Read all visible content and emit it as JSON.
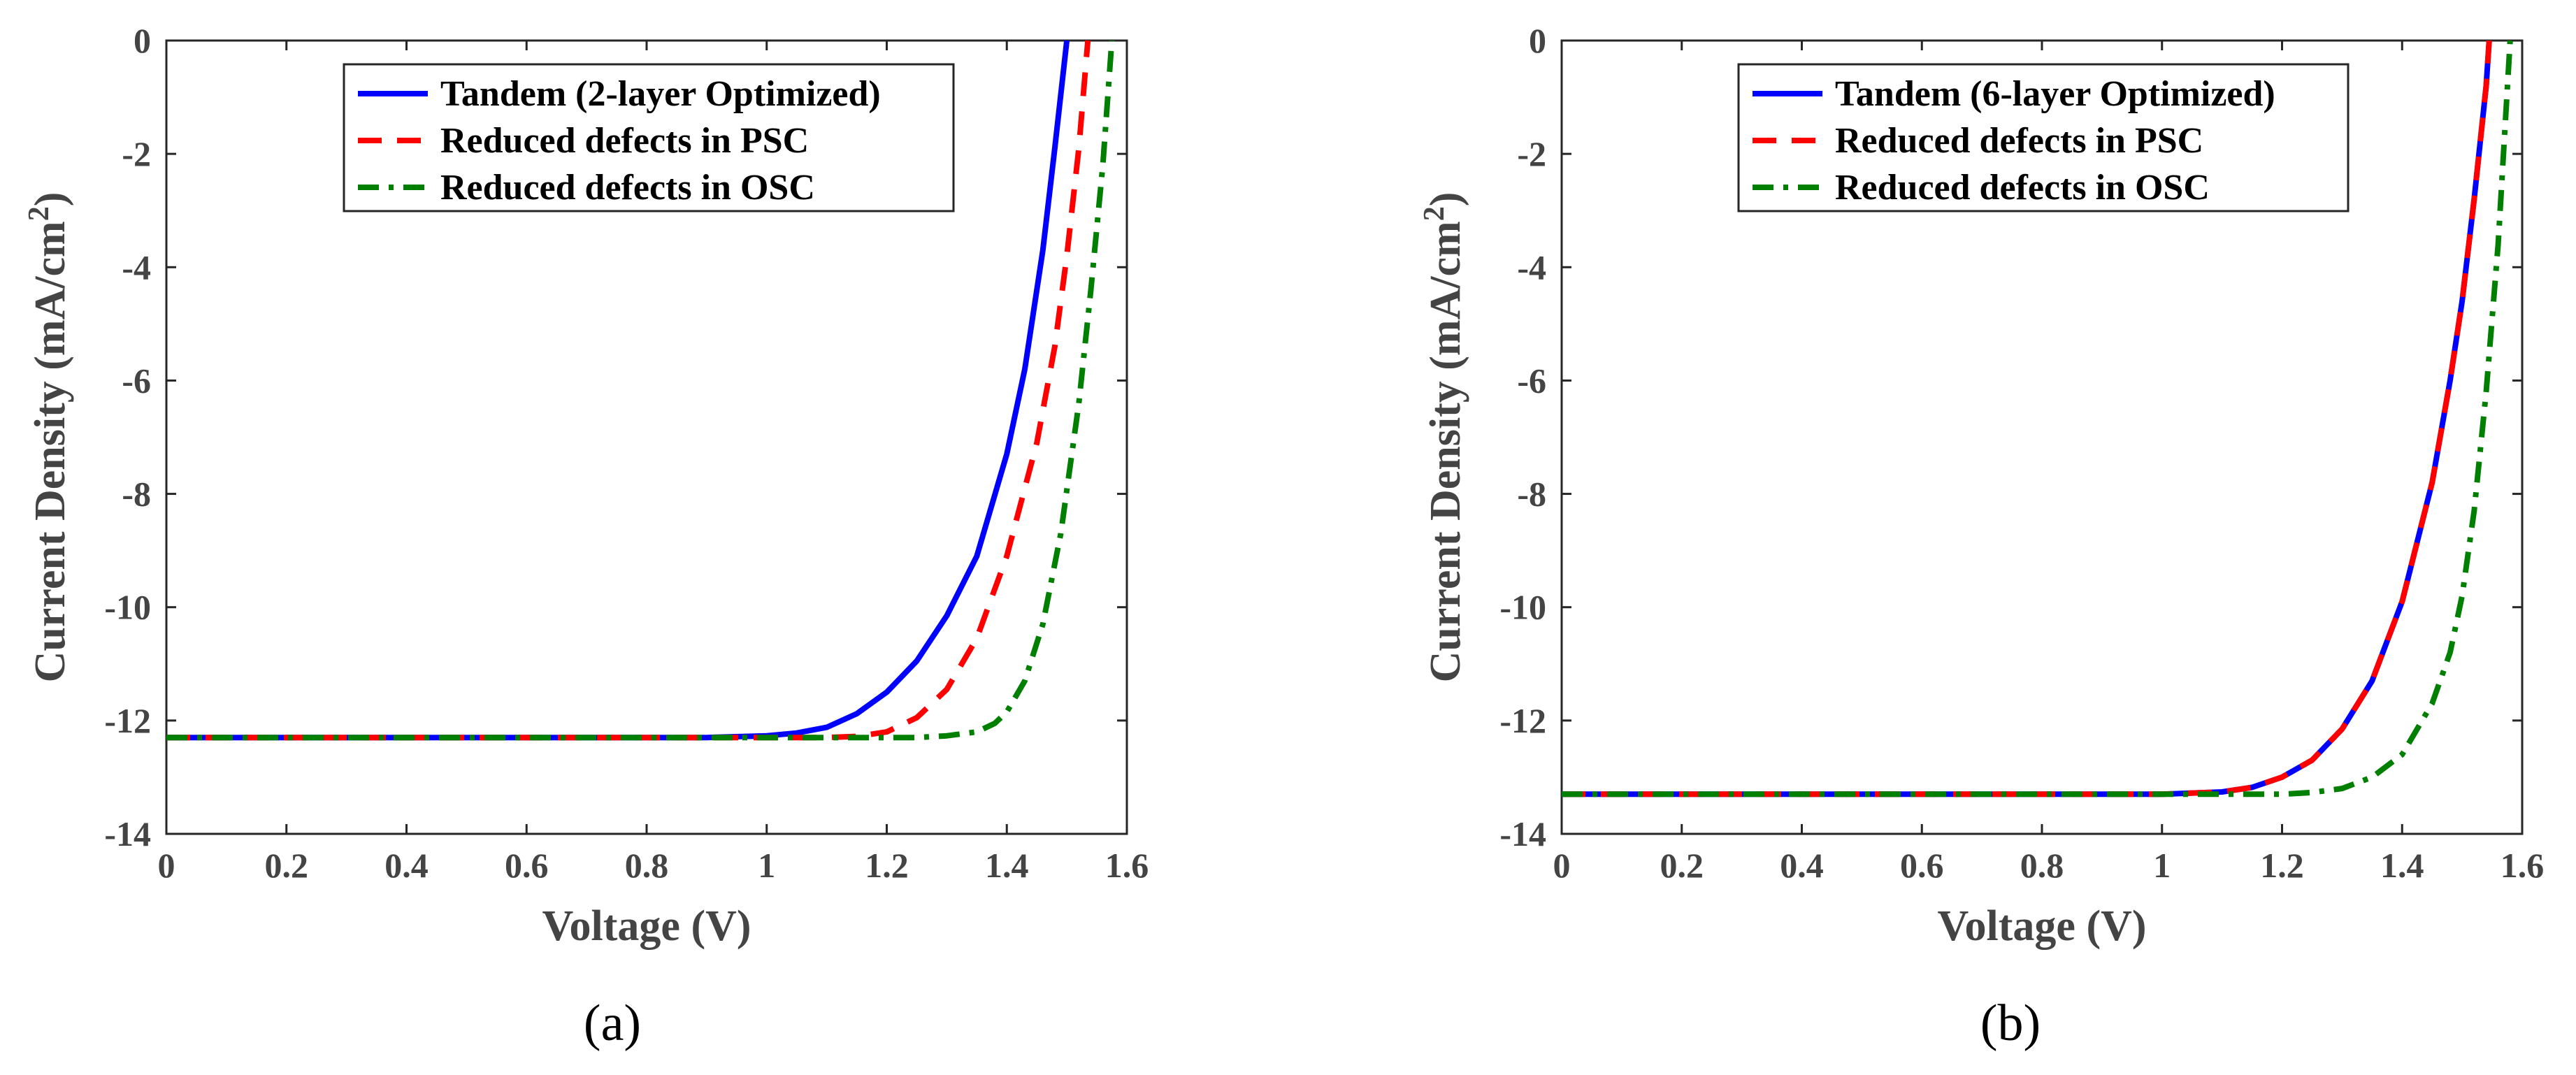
{
  "chart_data": [
    {
      "type": "line",
      "panel": "a",
      "caption": "(a)",
      "xlabel": "Voltage (V)",
      "ylabel": "Current Density (mA/cm",
      "ylabel_sup": "2",
      "ylabel_close": ")",
      "xlim": [
        0,
        1.6
      ],
      "ylim": [
        -14,
        0
      ],
      "xticks": [
        0,
        0.2,
        0.4,
        0.6,
        0.8,
        1,
        1.2,
        1.4,
        1.6
      ],
      "xtick_labels": [
        "0",
        "0.2",
        "0.4",
        "0.6",
        "0.8",
        "1",
        "1.2",
        "1.4",
        "1.6"
      ],
      "yticks": [
        0,
        -2,
        -4,
        -6,
        -8,
        -10,
        -12,
        -14
      ],
      "ytick_labels": [
        "0",
        "-2",
        "-4",
        "-6",
        "-8",
        "-10",
        "-12",
        "-14"
      ],
      "grid": false,
      "legend_position": "top-right",
      "series": [
        {
          "name": "Tandem (2-layer Optimized)",
          "color": "#0000ff",
          "style": "solid",
          "x": [
            0,
            0.9,
            1.0,
            1.05,
            1.1,
            1.15,
            1.2,
            1.25,
            1.3,
            1.35,
            1.4,
            1.43,
            1.46,
            1.48,
            1.5
          ],
          "y": [
            -12.3,
            -12.3,
            -12.27,
            -12.22,
            -12.12,
            -11.88,
            -11.5,
            -10.95,
            -10.15,
            -9.1,
            -7.3,
            -5.8,
            -3.7,
            -1.9,
            0
          ]
        },
        {
          "name": "Reduced defects in PSC",
          "color": "#ff0000",
          "style": "dashed",
          "x": [
            0,
            1.1,
            1.15,
            1.2,
            1.25,
            1.3,
            1.35,
            1.4,
            1.45,
            1.48,
            1.5,
            1.52,
            1.535
          ],
          "y": [
            -12.3,
            -12.3,
            -12.28,
            -12.2,
            -11.95,
            -11.45,
            -10.55,
            -9.1,
            -7.1,
            -5.4,
            -3.8,
            -1.9,
            0
          ]
        },
        {
          "name": "Reduced defects in OSC",
          "color": "#007f00",
          "style": "dashdot",
          "x": [
            0,
            1.25,
            1.3,
            1.35,
            1.38,
            1.4,
            1.43,
            1.46,
            1.49,
            1.52,
            1.54,
            1.56,
            1.575
          ],
          "y": [
            -12.3,
            -12.3,
            -12.27,
            -12.2,
            -12.05,
            -11.85,
            -11.3,
            -10.3,
            -8.7,
            -6.4,
            -4.4,
            -2.2,
            0
          ]
        }
      ]
    },
    {
      "type": "line",
      "panel": "b",
      "caption": "(b)",
      "xlabel": "Voltage (V)",
      "ylabel": "Current Density (mA/cm",
      "ylabel_sup": "2",
      "ylabel_close": ")",
      "xlim": [
        0,
        1.6
      ],
      "ylim": [
        -14,
        0
      ],
      "xticks": [
        0,
        0.2,
        0.4,
        0.6,
        0.8,
        1,
        1.2,
        1.4,
        1.6
      ],
      "xtick_labels": [
        "0",
        "0.2",
        "0.4",
        "0.6",
        "0.8",
        "1",
        "1.2",
        "1.4",
        "1.6"
      ],
      "yticks": [
        0,
        -2,
        -4,
        -6,
        -8,
        -10,
        -12,
        -14
      ],
      "ytick_labels": [
        "0",
        "-2",
        "-4",
        "-6",
        "-8",
        "-10",
        "-12",
        "-14"
      ],
      "grid": false,
      "legend_position": "top-right",
      "series": [
        {
          "name": "Tandem (6-layer Optimized)",
          "color": "#0000ff",
          "style": "solid",
          "x": [
            0,
            1.0,
            1.1,
            1.15,
            1.2,
            1.25,
            1.3,
            1.35,
            1.4,
            1.45,
            1.48,
            1.5,
            1.52,
            1.54,
            1.545
          ],
          "y": [
            -13.3,
            -13.3,
            -13.26,
            -13.18,
            -13.0,
            -12.7,
            -12.15,
            -11.3,
            -9.9,
            -7.8,
            -6.0,
            -4.6,
            -2.8,
            -0.8,
            0
          ]
        },
        {
          "name": "Reduced defects in PSC",
          "color": "#ff0000",
          "style": "dashed",
          "x": [
            0,
            1.0,
            1.1,
            1.15,
            1.2,
            1.25,
            1.3,
            1.35,
            1.4,
            1.45,
            1.48,
            1.5,
            1.52,
            1.54,
            1.545
          ],
          "y": [
            -13.3,
            -13.3,
            -13.26,
            -13.18,
            -13.0,
            -12.7,
            -12.15,
            -11.3,
            -9.9,
            -7.8,
            -6.0,
            -4.6,
            -2.8,
            -0.8,
            0
          ]
        },
        {
          "name": "Reduced defects in OSC",
          "color": "#007f00",
          "style": "dashdot",
          "x": [
            0,
            1.2,
            1.25,
            1.3,
            1.35,
            1.4,
            1.45,
            1.48,
            1.5,
            1.52,
            1.54,
            1.56,
            1.58
          ],
          "y": [
            -13.3,
            -13.3,
            -13.27,
            -13.2,
            -13.0,
            -12.6,
            -11.7,
            -10.8,
            -9.8,
            -8.3,
            -6.2,
            -3.6,
            0
          ]
        }
      ]
    }
  ]
}
